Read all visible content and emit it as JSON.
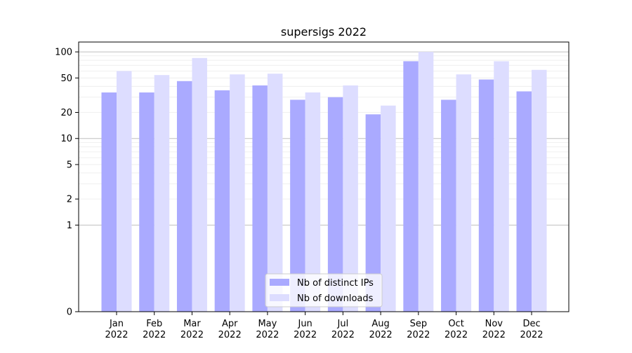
{
  "chart_data": {
    "type": "bar",
    "title": "supersigs 2022",
    "xlabel": "",
    "ylabel": "",
    "yscale": "symlog",
    "ylim": [
      0,
      130
    ],
    "yticks": [
      0,
      1,
      2,
      5,
      10,
      20,
      50,
      100
    ],
    "ytick_labels": [
      "0",
      "1",
      "2",
      "5",
      "10",
      "20",
      "50",
      "100"
    ],
    "categories": [
      "Jan\n2022",
      "Feb\n2022",
      "Mar\n2022",
      "Apr\n2022",
      "May\n2022",
      "Jun\n2022",
      "Jul\n2022",
      "Aug\n2022",
      "Sep\n2022",
      "Oct\n2022",
      "Nov\n2022",
      "Dec\n2022"
    ],
    "series": [
      {
        "name": "Nb of distinct IPs",
        "color": "#aaaaff",
        "values": [
          34,
          34,
          46,
          36,
          41,
          28,
          30,
          19,
          78,
          28,
          48,
          35
        ]
      },
      {
        "name": "Nb of downloads",
        "color": "#ddddff",
        "values": [
          60,
          54,
          85,
          55,
          56,
          34,
          41,
          24,
          100,
          55,
          78,
          62
        ]
      }
    ],
    "grid": true,
    "legend_position": "lower-center"
  }
}
